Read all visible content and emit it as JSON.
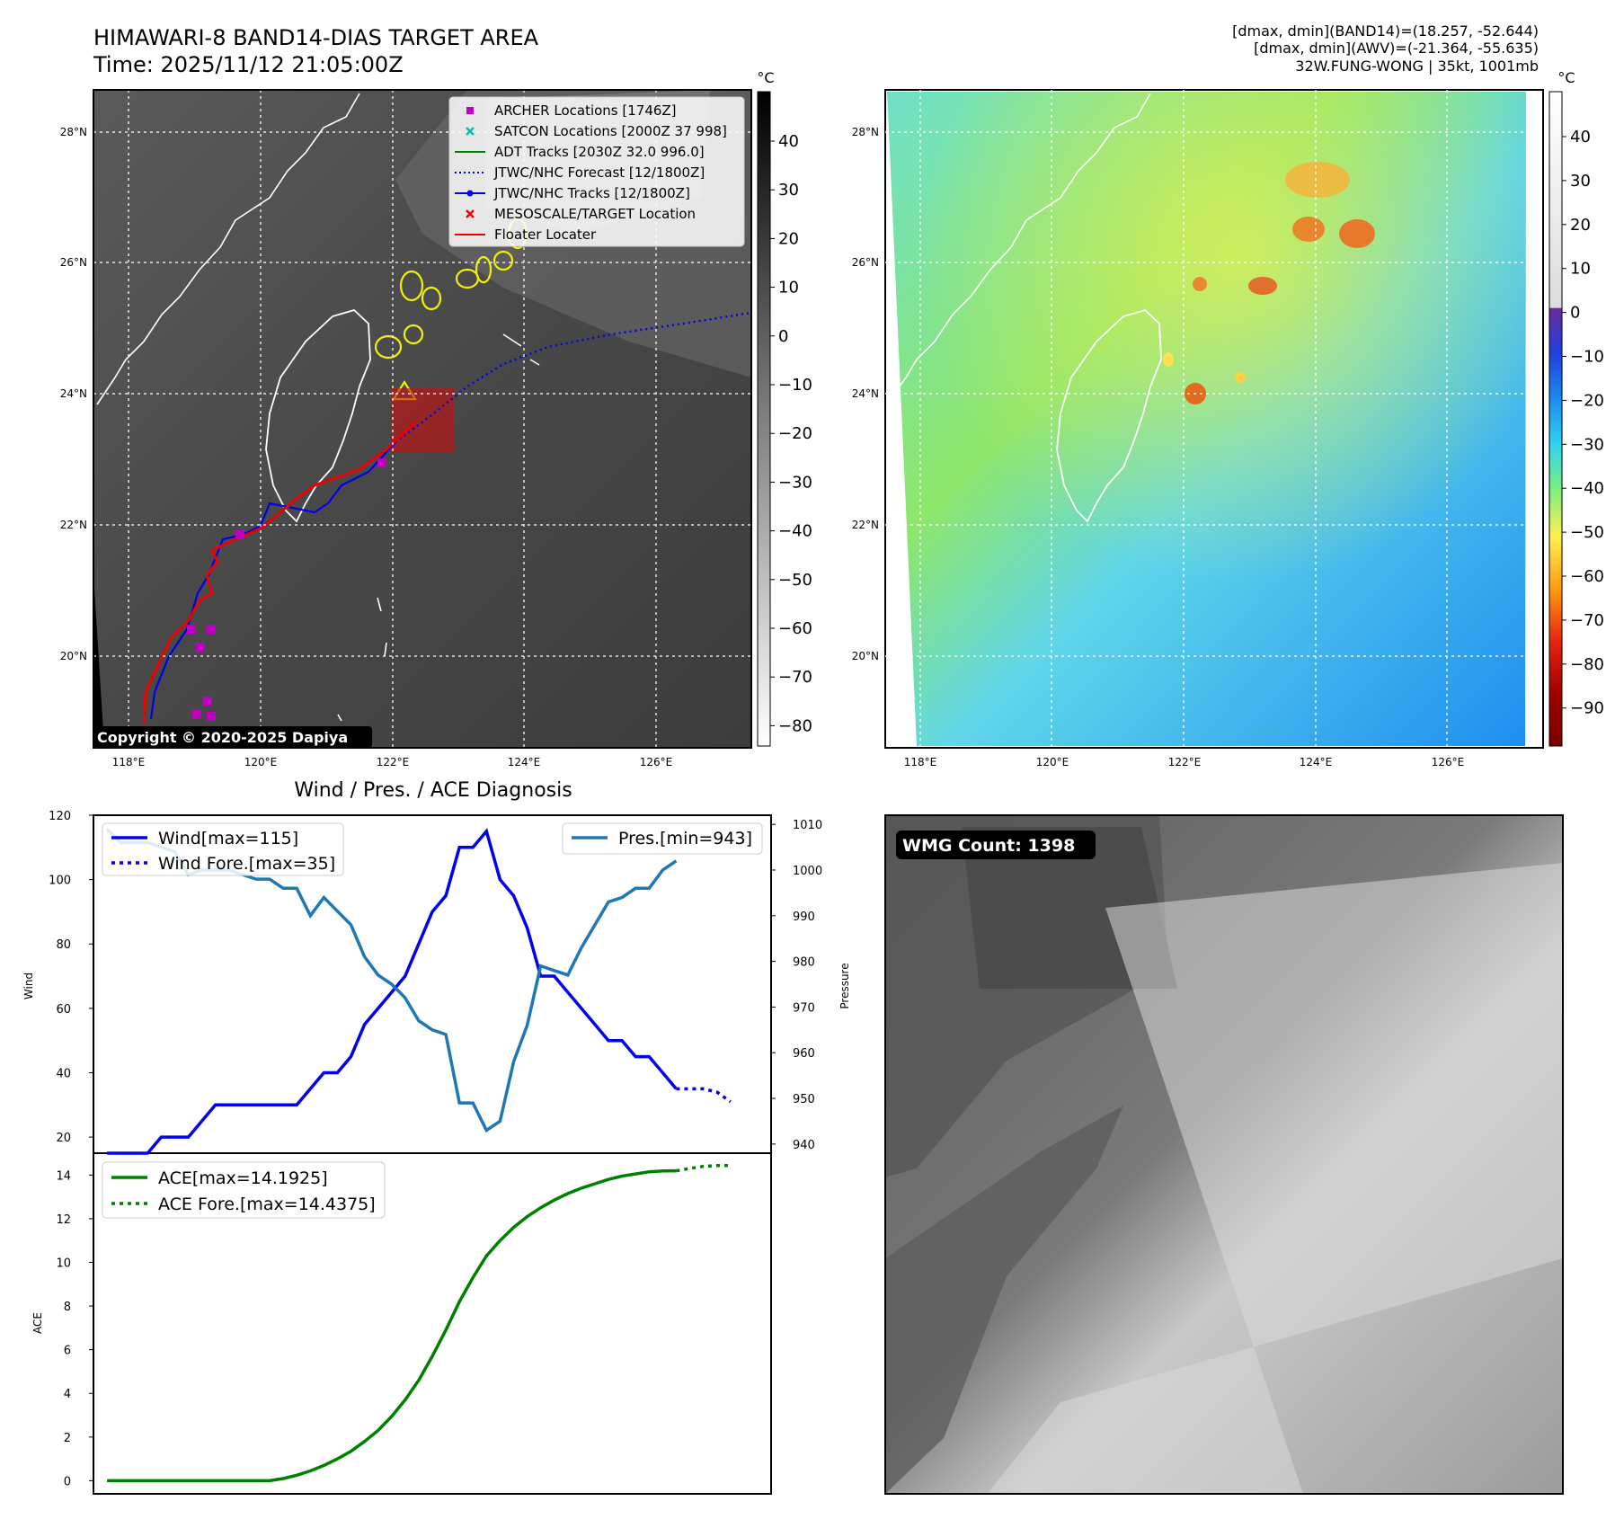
{
  "header": {
    "title": "HIMAWARI-8 BAND14-DIAS TARGET AREA",
    "time": "Time: 2025/11/12 21:05:00Z",
    "info_line1": "[dmax, dmin](BAND14)=(18.257, -52.644)",
    "info_line2": "[dmax, dmin](AWV)=(-21.364, -55.635)",
    "info_line3": "32W.FUNG-WONG | 35kt, 1001mb"
  },
  "map_ir": {
    "copyright": "Copyright © 2020-2025 Dapiya",
    "colorbar_unit": "°C",
    "colorbar_ticks": [
      "40",
      "30",
      "20",
      "10",
      "0",
      "−10",
      "−20",
      "−30",
      "−40",
      "−50",
      "−60",
      "−70",
      "−80"
    ],
    "lon_labels": [
      "118°E",
      "120°E",
      "122°E",
      "124°E",
      "126°E"
    ],
    "lat_labels": [
      "28°N",
      "26°N",
      "24°N",
      "22°N",
      "20°N"
    ],
    "legend": [
      {
        "label": "ARCHER Locations [1746Z]",
        "color": "#c000c0",
        "marker": "square"
      },
      {
        "label": "SATCON Locations [2000Z 37 998]",
        "color": "#10b8b8",
        "marker": "x"
      },
      {
        "label": "ADT Tracks [2030Z 32.0 996.0]",
        "color": "#008000",
        "marker": "line"
      },
      {
        "label": "JTWC/NHC Forecast [12/1800Z]",
        "color": "#0000ee",
        "marker": "dotted"
      },
      {
        "label": "JTWC/NHC Tracks [12/1800Z]",
        "color": "#0000ee",
        "marker": "line-dot"
      },
      {
        "label": "MESOSCALE/TARGET Location",
        "color": "#ee0000",
        "marker": "x"
      },
      {
        "label": "Floater Locater",
        "color": "#ee0000",
        "marker": "line"
      }
    ]
  },
  "map_awv": {
    "colorbar_unit": "°C",
    "colorbar_ticks": [
      "40",
      "30",
      "20",
      "10",
      "0",
      "−10",
      "−20",
      "−30",
      "−40",
      "−50",
      "−60",
      "−70",
      "−80",
      "−90"
    ],
    "lon_labels": [
      "118°E",
      "120°E",
      "122°E",
      "124°E",
      "126°E"
    ],
    "lat_labels": [
      "28°N",
      "26°N",
      "24°N",
      "22°N",
      "20°N"
    ]
  },
  "wmg": {
    "label": "WMG Count: 1398"
  },
  "chart_data": [
    {
      "type": "line",
      "title": "Wind / Pres. / ACE Diagnosis",
      "ylabel": "Wind",
      "y2label": "Pressure",
      "ylim": [
        15,
        120
      ],
      "y2lim": [
        938,
        1012
      ],
      "yticks": [
        20,
        40,
        60,
        80,
        100,
        120
      ],
      "y2ticks": [
        940,
        950,
        960,
        970,
        980,
        990,
        1000,
        1010
      ],
      "xlim": [
        -1,
        49
      ],
      "series": [
        {
          "name": "Wind[max=115]",
          "color": "#0000ee",
          "style": "solid",
          "axis": "left",
          "x": [
            0,
            1,
            2,
            3,
            4,
            5,
            6,
            7,
            8,
            9,
            10,
            11,
            12,
            13,
            14,
            15,
            16,
            17,
            18,
            19,
            20,
            21,
            22,
            23,
            24,
            25,
            26,
            27,
            28,
            29,
            30,
            31,
            32,
            33,
            34,
            35,
            36,
            37,
            38,
            39,
            40,
            41,
            42
          ],
          "values": [
            15,
            15,
            15,
            15,
            20,
            20,
            20,
            25,
            30,
            30,
            30,
            30,
            30,
            30,
            30,
            35,
            40,
            40,
            45,
            55,
            60,
            65,
            70,
            80,
            90,
            95,
            110,
            110,
            115,
            100,
            95,
            85,
            70,
            70,
            65,
            60,
            55,
            50,
            50,
            45,
            45,
            40,
            35
          ]
        },
        {
          "name": "Wind Fore.[max=35]",
          "color": "#0000ee",
          "style": "dotted",
          "axis": "left",
          "x": [
            42,
            43,
            44,
            45,
            46
          ],
          "values": [
            35,
            35,
            35,
            34,
            31
          ]
        },
        {
          "name": "Pres.[min=943]",
          "color": "#1f77b4",
          "style": "solid",
          "axis": "right",
          "x": [
            0,
            1,
            2,
            3,
            4,
            5,
            6,
            7,
            8,
            9,
            10,
            11,
            12,
            13,
            14,
            15,
            16,
            17,
            18,
            19,
            20,
            21,
            22,
            23,
            24,
            25,
            26,
            27,
            28,
            29,
            30,
            31,
            32,
            33,
            34,
            35,
            36,
            37,
            38,
            39,
            40,
            41,
            42
          ],
          "values": [
            1009,
            1006,
            1006,
            1006,
            1005,
            1004,
            999,
            1000,
            1000,
            1000,
            999,
            998,
            998,
            996,
            996,
            990,
            994,
            991,
            988,
            981,
            977,
            975,
            972,
            967,
            965,
            964,
            949,
            949,
            943,
            945,
            958,
            966,
            979,
            978,
            977,
            983,
            988,
            993,
            994,
            996,
            996,
            1000,
            1002
          ]
        }
      ]
    },
    {
      "type": "line",
      "ylabel": "ACE",
      "ylim": [
        -0.6,
        15
      ],
      "yticks": [
        0,
        2,
        4,
        6,
        8,
        10,
        12,
        14
      ],
      "xlim": [
        -1,
        49
      ],
      "series": [
        {
          "name": "ACE[max=14.1925]",
          "color": "#008000",
          "style": "solid",
          "x": [
            0,
            1,
            2,
            3,
            4,
            5,
            6,
            7,
            8,
            9,
            10,
            11,
            12,
            13,
            14,
            15,
            16,
            17,
            18,
            19,
            20,
            21,
            22,
            23,
            24,
            25,
            26,
            27,
            28,
            29,
            30,
            31,
            32,
            33,
            34,
            35,
            36,
            37,
            38,
            39,
            40,
            41,
            42
          ],
          "values": [
            0,
            0,
            0,
            0,
            0,
            0,
            0,
            0,
            0,
            0,
            0,
            0,
            0,
            0.1,
            0.25,
            0.45,
            0.7,
            1.0,
            1.35,
            1.8,
            2.3,
            2.95,
            3.7,
            4.6,
            5.7,
            6.9,
            8.2,
            9.3,
            10.3,
            11.0,
            11.6,
            12.1,
            12.5,
            12.85,
            13.15,
            13.4,
            13.6,
            13.8,
            13.95,
            14.05,
            14.15,
            14.19,
            14.1925
          ]
        },
        {
          "name": "ACE Fore.[max=14.4375]",
          "color": "#008000",
          "style": "dotted",
          "x": [
            42,
            43,
            44,
            45,
            46
          ],
          "values": [
            14.1925,
            14.3,
            14.4,
            14.43,
            14.4375
          ]
        }
      ]
    }
  ]
}
